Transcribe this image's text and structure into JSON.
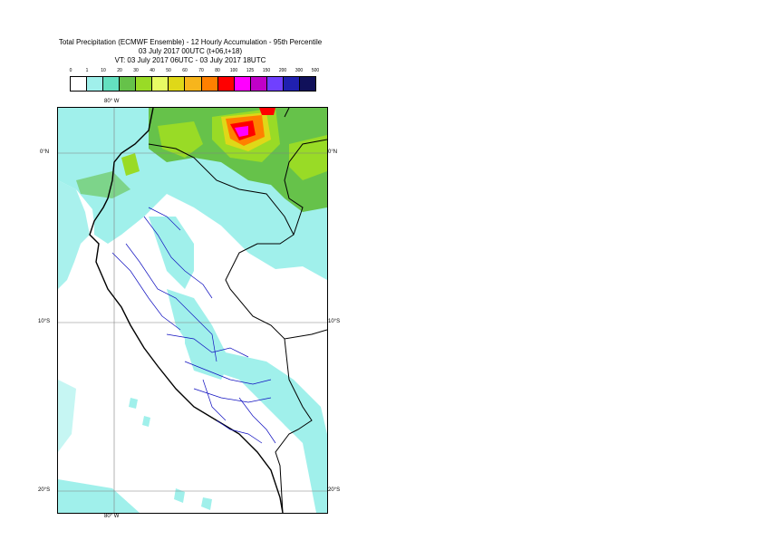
{
  "title": {
    "line1": "Total Precipitation (ECMWF Ensemble) - 12 Hourly Accumulation - 95th Percentile",
    "line2": "03 July 2017 00UTC (t+06,t+18)",
    "line3": "VT: 03 July 2017 06UTC - 03 July 2017 18UTC"
  },
  "legend": {
    "labels": [
      "0",
      "1",
      "10",
      "20",
      "30",
      "40",
      "50",
      "60",
      "70",
      "80",
      "100",
      "125",
      "150",
      "200",
      "300",
      "500"
    ],
    "colors": [
      "#ffffff",
      "#a0f0eb",
      "#64e0c0",
      "#66c24a",
      "#99db26",
      "#e8fb64",
      "#dfd818",
      "#f7b51c",
      "#ff8000",
      "#ff0000",
      "#ff00ff",
      "#c000c8",
      "#7040ff",
      "#2020b0",
      "#10105a"
    ]
  },
  "map": {
    "lon_top_label": "80° W",
    "lon_bottom_label": "80° W",
    "lat_labels": {
      "north": "0°N",
      "mid": "10°S",
      "south": "20°S"
    },
    "colors": {
      "sea_precip": "#a0f0eb",
      "land_light": "#a0f0eb",
      "gridline": "#808080",
      "coast": "#000000",
      "border": "#1010c0"
    }
  }
}
